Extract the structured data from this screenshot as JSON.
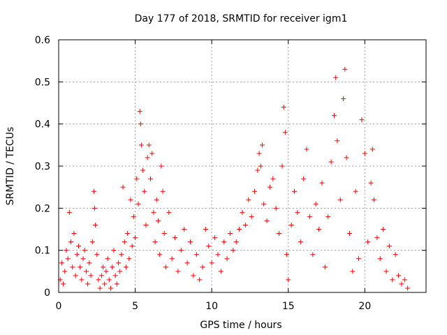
{
  "chart_data": {
    "type": "scatter",
    "title": "Day 177 of 2018, SRMTID for receiver igm1",
    "xlabel": "GPS time / hours",
    "ylabel": "SRMTID / TECUs",
    "xlim": [
      0,
      24
    ],
    "ylim": [
      0,
      0.6
    ],
    "xticks": [
      0,
      5,
      10,
      15,
      20
    ],
    "yticks": [
      0,
      0.1,
      0.2,
      0.3,
      0.4,
      0.5,
      0.6
    ],
    "xtick_labels": [
      "0",
      "5",
      "10",
      "15",
      "20"
    ],
    "ytick_labels": [
      "0",
      "0.1",
      "0.2",
      "0.3",
      "0.4",
      "0.5",
      "0.6"
    ],
    "grid": true,
    "marker": "+",
    "color": "#ff0000",
    "series": [
      {
        "name": "SRMTID",
        "points": [
          [
            0.1,
            0.03
          ],
          [
            0.2,
            0.07
          ],
          [
            0.3,
            0.02
          ],
          [
            0.4,
            0.05
          ],
          [
            0.5,
            0.1
          ],
          [
            0.6,
            0.08
          ],
          [
            0.7,
            0.19
          ],
          [
            0.8,
            0.12
          ],
          [
            0.9,
            0.06
          ],
          [
            1.0,
            0.14
          ],
          [
            1.1,
            0.04
          ],
          [
            1.2,
            0.09
          ],
          [
            1.3,
            0.11
          ],
          [
            1.4,
            0.06
          ],
          [
            1.5,
            0.03
          ],
          [
            1.6,
            0.08
          ],
          [
            1.7,
            0.1
          ],
          [
            1.8,
            0.05
          ],
          [
            1.9,
            0.02
          ],
          [
            2.0,
            0.07
          ],
          [
            2.1,
            0.04
          ],
          [
            2.2,
            0.12
          ],
          [
            2.3,
            0.24
          ],
          [
            2.35,
            0.2
          ],
          [
            2.4,
            0.16
          ],
          [
            2.5,
            0.09
          ],
          [
            2.6,
            0.03
          ],
          [
            2.7,
            0.01
          ],
          [
            2.8,
            0.04
          ],
          [
            2.9,
            0.06
          ],
          [
            3.0,
            0.02
          ],
          [
            3.1,
            0.05
          ],
          [
            3.2,
            0.08
          ],
          [
            3.3,
            0.03
          ],
          [
            3.4,
            0.01
          ],
          [
            3.5,
            0.06
          ],
          [
            3.6,
            0.1
          ],
          [
            3.7,
            0.04
          ],
          [
            3.8,
            0.02
          ],
          [
            3.9,
            0.07
          ],
          [
            4.0,
            0.05
          ],
          [
            4.1,
            0.09
          ],
          [
            4.2,
            0.25
          ],
          [
            4.3,
            0.12
          ],
          [
            4.4,
            0.06
          ],
          [
            4.5,
            0.14
          ],
          [
            4.6,
            0.08
          ],
          [
            4.7,
            0.22
          ],
          [
            4.8,
            0.11
          ],
          [
            4.9,
            0.18
          ],
          [
            5.0,
            0.13
          ],
          [
            5.1,
            0.27
          ],
          [
            5.2,
            0.21
          ],
          [
            5.3,
            0.43
          ],
          [
            5.35,
            0.4
          ],
          [
            5.4,
            0.35
          ],
          [
            5.5,
            0.29
          ],
          [
            5.6,
            0.24
          ],
          [
            5.7,
            0.16
          ],
          [
            5.8,
            0.32
          ],
          [
            5.9,
            0.35
          ],
          [
            6.0,
            0.27
          ],
          [
            6.1,
            0.33
          ],
          [
            6.2,
            0.19
          ],
          [
            6.3,
            0.12
          ],
          [
            6.4,
            0.22
          ],
          [
            6.5,
            0.17
          ],
          [
            6.6,
            0.09
          ],
          [
            6.7,
            0.3
          ],
          [
            6.8,
            0.24
          ],
          [
            6.9,
            0.14
          ],
          [
            7.0,
            0.06
          ],
          [
            7.2,
            0.19
          ],
          [
            7.4,
            0.08
          ],
          [
            7.6,
            0.13
          ],
          [
            7.8,
            0.05
          ],
          [
            8.0,
            0.1
          ],
          [
            8.2,
            0.15
          ],
          [
            8.4,
            0.07
          ],
          [
            8.6,
            0.12
          ],
          [
            8.8,
            0.04
          ],
          [
            9.0,
            0.09
          ],
          [
            9.2,
            0.03
          ],
          [
            9.4,
            0.06
          ],
          [
            9.6,
            0.15
          ],
          [
            9.8,
            0.11
          ],
          [
            10.0,
            0.07
          ],
          [
            10.2,
            0.13
          ],
          [
            10.4,
            0.09
          ],
          [
            10.6,
            0.05
          ],
          [
            10.8,
            0.12
          ],
          [
            11.0,
            0.08
          ],
          [
            11.2,
            0.14
          ],
          [
            11.4,
            0.1
          ],
          [
            11.6,
            0.12
          ],
          [
            11.8,
            0.15
          ],
          [
            12.0,
            0.19
          ],
          [
            12.2,
            0.16
          ],
          [
            12.4,
            0.22
          ],
          [
            12.6,
            0.18
          ],
          [
            12.8,
            0.24
          ],
          [
            13.0,
            0.29
          ],
          [
            13.1,
            0.33
          ],
          [
            13.2,
            0.3
          ],
          [
            13.3,
            0.35
          ],
          [
            13.4,
            0.21
          ],
          [
            13.6,
            0.17
          ],
          [
            13.8,
            0.25
          ],
          [
            14.0,
            0.27
          ],
          [
            14.2,
            0.2
          ],
          [
            14.4,
            0.14
          ],
          [
            14.6,
            0.3
          ],
          [
            14.7,
            0.44
          ],
          [
            14.8,
            0.38
          ],
          [
            14.9,
            0.09
          ],
          [
            15.0,
            0.03
          ],
          [
            15.2,
            0.16
          ],
          [
            15.4,
            0.24
          ],
          [
            15.6,
            0.19
          ],
          [
            15.8,
            0.12
          ],
          [
            16.0,
            0.27
          ],
          [
            16.2,
            0.34
          ],
          [
            16.4,
            0.18
          ],
          [
            16.6,
            0.09
          ],
          [
            16.8,
            0.21
          ],
          [
            17.0,
            0.15
          ],
          [
            17.2,
            0.26
          ],
          [
            17.4,
            0.06
          ],
          [
            17.6,
            0.18
          ],
          [
            17.8,
            0.31
          ],
          [
            18.0,
            0.42
          ],
          [
            18.1,
            0.51
          ],
          [
            18.2,
            0.36
          ],
          [
            18.4,
            0.22
          ],
          [
            18.6,
            0.46
          ],
          [
            18.7,
            0.53
          ],
          [
            18.8,
            0.32
          ],
          [
            19.0,
            0.14
          ],
          [
            19.2,
            0.05
          ],
          [
            19.4,
            0.24
          ],
          [
            19.6,
            0.08
          ],
          [
            19.8,
            0.41
          ],
          [
            20.0,
            0.33
          ],
          [
            20.2,
            0.12
          ],
          [
            20.4,
            0.26
          ],
          [
            20.5,
            0.34
          ],
          [
            20.6,
            0.22
          ],
          [
            20.8,
            0.13
          ],
          [
            21.0,
            0.08
          ],
          [
            21.2,
            0.15
          ],
          [
            21.4,
            0.05
          ],
          [
            21.6,
            0.11
          ],
          [
            21.8,
            0.03
          ],
          [
            22.0,
            0.09
          ],
          [
            22.2,
            0.04
          ],
          [
            22.4,
            0.02
          ],
          [
            22.6,
            0.03
          ],
          [
            22.8,
            0.01
          ]
        ]
      }
    ]
  }
}
